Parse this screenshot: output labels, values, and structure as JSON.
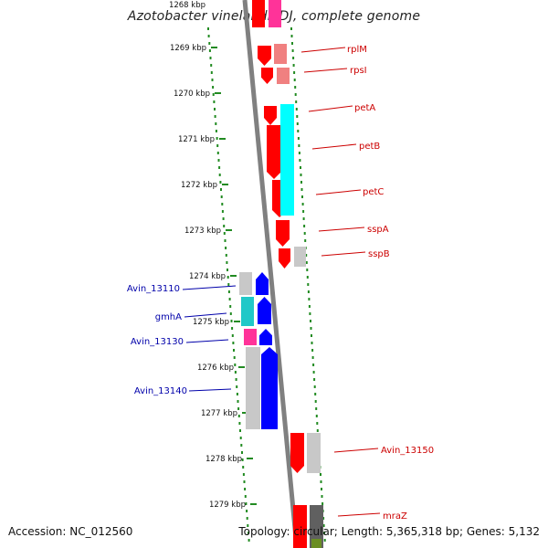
{
  "title": "Azotobacter vinelandii DJ, complete genome",
  "footer": {
    "accession": "Accession: NC_012560",
    "topology": "Topology: circular; Length: 5,365,318 bp; Genes: 5,132"
  },
  "scale": {
    "top_partial": "1268 kbp",
    "ticks": [
      "1269 kbp",
      "1270 kbp",
      "1271 kbp",
      "1272 kbp",
      "1273 kbp",
      "1274 kbp",
      "1275 kbp",
      "1276 kbp",
      "1277 kbp",
      "1278 kbp",
      "1279 kbp"
    ]
  },
  "colors": {
    "forward_gene": "#ff0000",
    "forward_gene_light": "#f08080",
    "reverse_gene": "#0000ff",
    "cds_cyan_forward": "#00ffff",
    "cds_cyan_reverse": "#20c8c8",
    "pseudo_gray": "#c8c8c8",
    "magenta": "#ff3399",
    "label_forward": "#cc0000",
    "label_reverse": "#0000aa",
    "backbone": "#808080",
    "dots": "#228b22"
  },
  "labels": {
    "forward": [
      "rplM",
      "rpsI",
      "petA",
      "petB",
      "petC",
      "sspA",
      "sspB",
      "Avin_13150",
      "mraZ"
    ],
    "reverse": [
      "Avin_13110",
      "gmhA",
      "Avin_13130",
      "Avin_13140"
    ]
  }
}
